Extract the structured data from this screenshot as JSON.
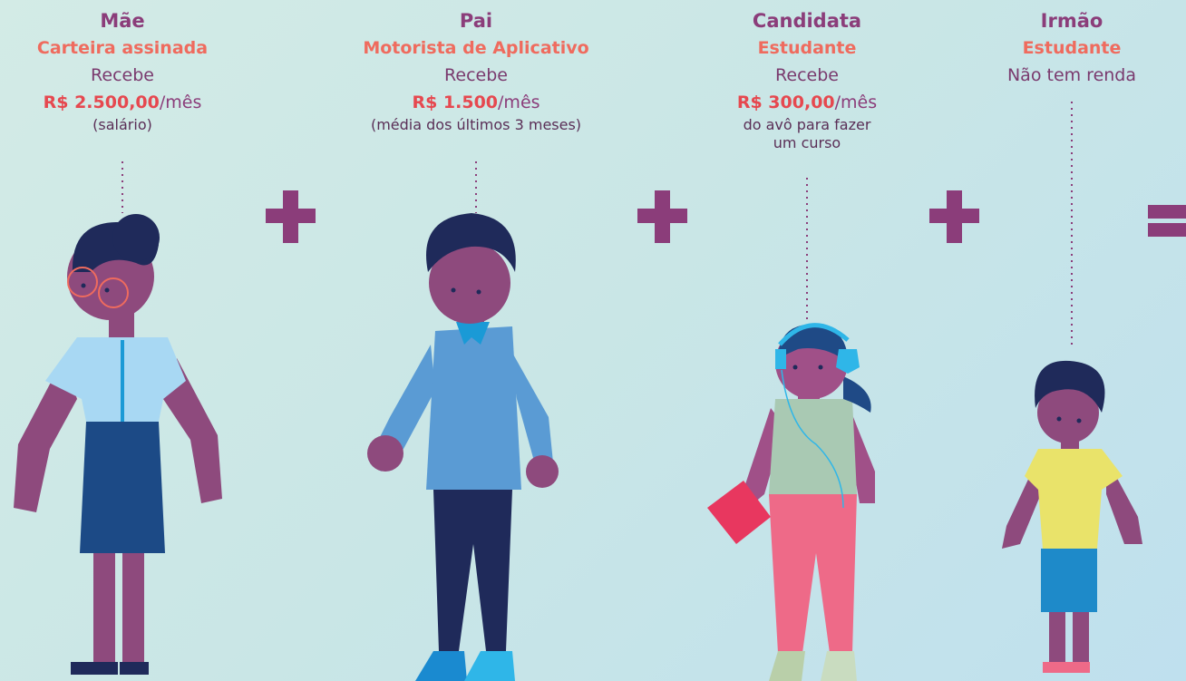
{
  "people": [
    {
      "role": "Mãe",
      "occupation": "Carteira assinada",
      "receives": "Recebe",
      "amount": "R$ 2.500,00",
      "period": "/mês",
      "note": [
        "(salário)"
      ]
    },
    {
      "role": "Pai",
      "occupation": "Motorista de Aplicativo",
      "receives": "Recebe",
      "amount": "R$ 1.500",
      "period": "/mês",
      "note": [
        "(média dos últimos 3 meses)"
      ]
    },
    {
      "role": "Candidata",
      "occupation": "Estudante",
      "receives": "Recebe",
      "amount": "R$ 300,00",
      "period": "/mês",
      "note": [
        "do avô para fazer",
        "um curso"
      ]
    },
    {
      "role": "Irmão",
      "occupation": "Estudante",
      "income": "Não tem renda"
    }
  ]
}
